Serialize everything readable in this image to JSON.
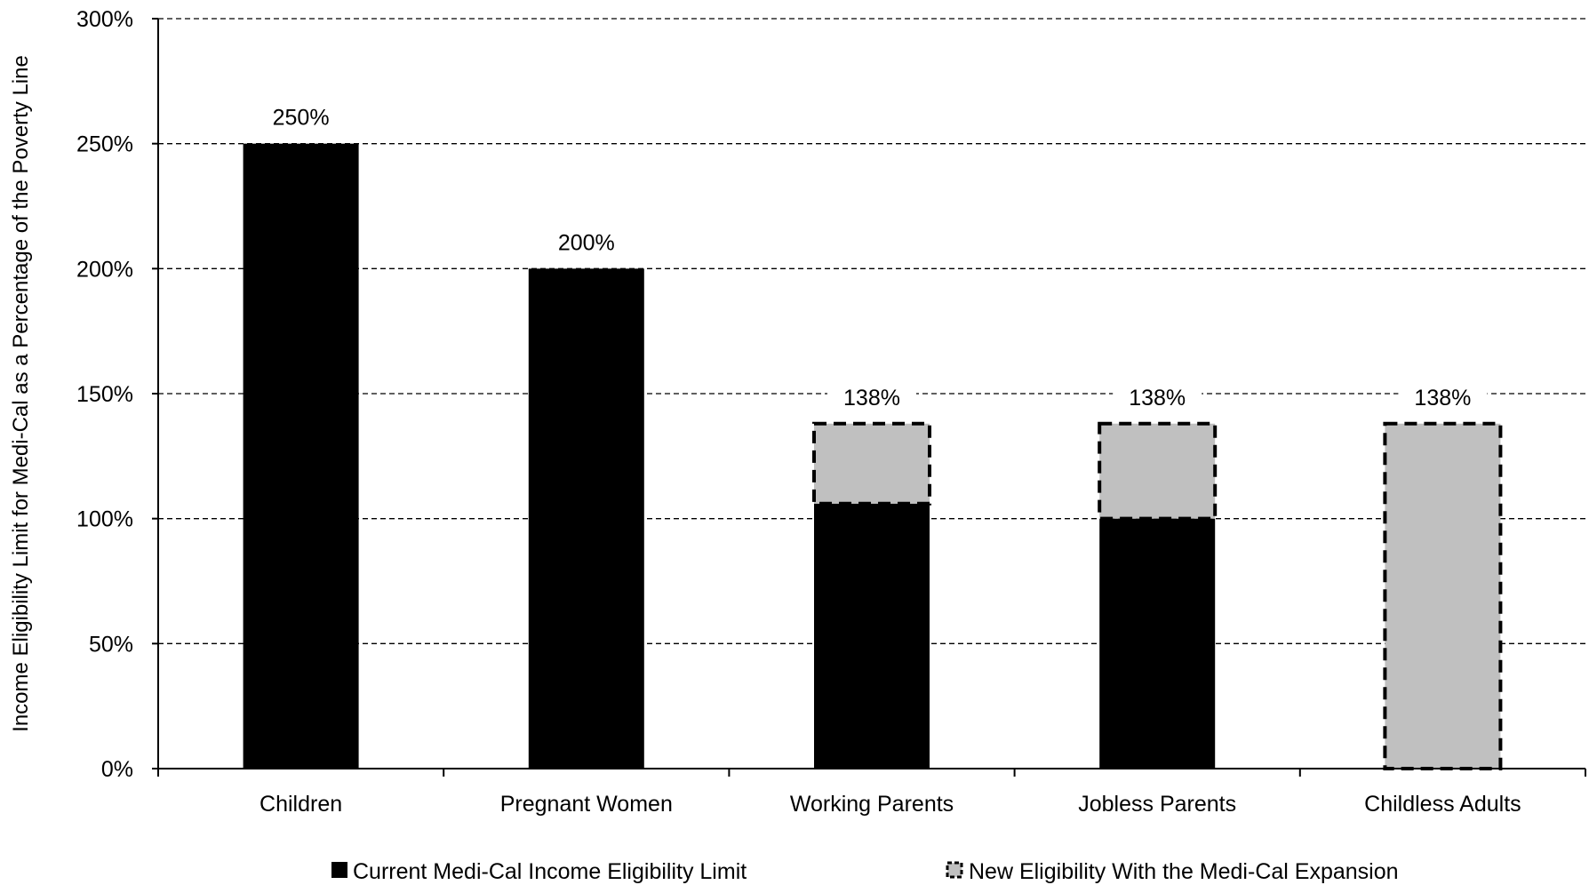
{
  "chart_data": {
    "type": "bar",
    "stacked": true,
    "categories": [
      "Children",
      "Pregnant Women",
      "Working Parents",
      "Jobless Parents",
      "Childless Adults"
    ],
    "series": [
      {
        "name": "Current Medi-Cal Income Eligibility Limit",
        "values": [
          250,
          200,
          106,
          100,
          0
        ],
        "color": "#000000"
      },
      {
        "name": "New Eligibility With the Medi-Cal Expansion",
        "values": [
          0,
          0,
          32,
          38,
          138
        ],
        "color": "#c0c0c0"
      }
    ],
    "data_labels": [
      "250%",
      "200%",
      "138%",
      "138%",
      "138%"
    ],
    "ylabel": "Income Eligibility Limit for Medi-Cal as a Percentage of the Poverty Line",
    "xlabel": "",
    "ylim": [
      0,
      300
    ],
    "yticks": [
      0,
      50,
      100,
      150,
      200,
      250,
      300
    ],
    "ytick_labels": [
      "0%",
      "50%",
      "100%",
      "150%",
      "200%",
      "250%",
      "300%"
    ],
    "grid": true,
    "legend_position": "bottom"
  }
}
